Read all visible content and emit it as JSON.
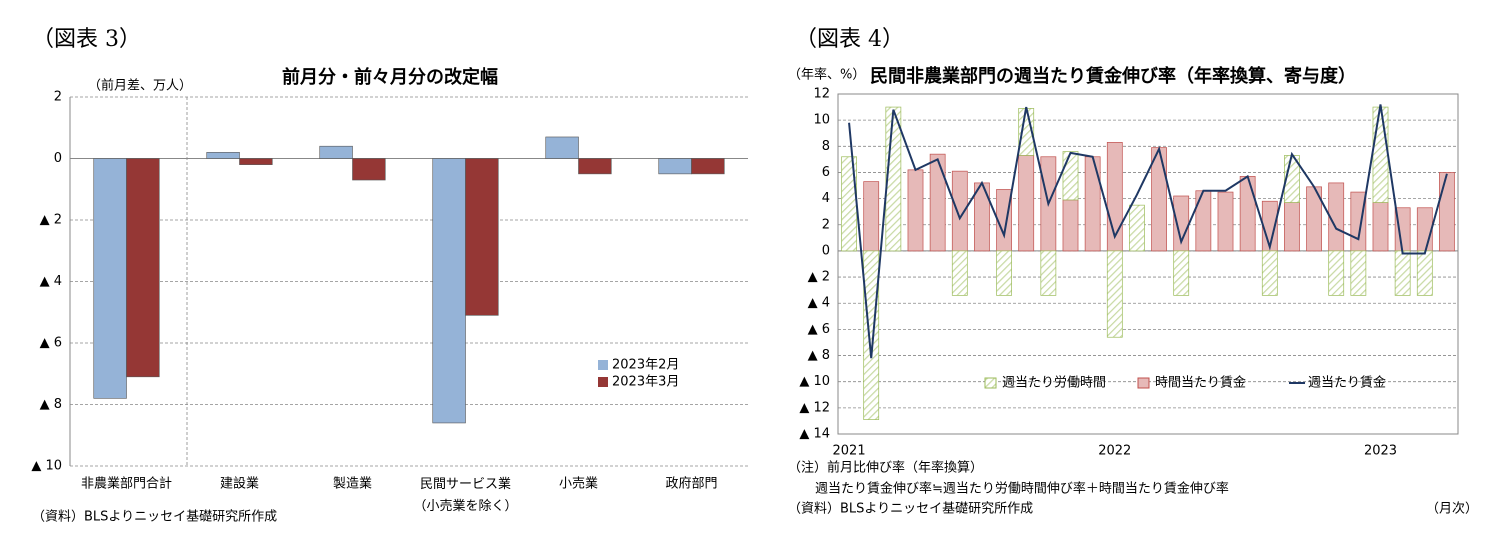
{
  "chart_data": [
    {
      "type": "bar",
      "figure_label": "（図表 3）",
      "title": "前月分・前々月分の改定幅",
      "y_label": "（前月差、万人）",
      "source": "（資料）BLSよりニッセイ基礎研究所作成",
      "categories": [
        "非農業部門合計",
        "建設業",
        "製造業",
        "民間サービス業\n（小売業を除く）",
        "小売業",
        "政府部門"
      ],
      "series": [
        {
          "name": "2023年2月",
          "color": "#95b3d7",
          "values": [
            -7.8,
            0.2,
            0.4,
            -8.6,
            0.7,
            -0.5
          ]
        },
        {
          "name": "2023年3月",
          "color": "#953735",
          "values": [
            -7.1,
            -0.2,
            -0.7,
            -5.1,
            -0.5,
            -0.5
          ]
        }
      ],
      "ylim": [
        -10,
        2
      ],
      "yticks": [
        2,
        0,
        {
          "value": -2,
          "label": "▲ 2"
        },
        {
          "value": -4,
          "label": "▲ 4"
        },
        {
          "value": -6,
          "label": "▲ 6"
        },
        {
          "value": -8,
          "label": "▲ 8"
        },
        {
          "value": -10,
          "label": "▲ 10"
        }
      ],
      "grid": true,
      "legend": "lower-right"
    },
    {
      "type": "bar_line",
      "figure_label": "（図表 4）",
      "title": "民間非農業部門の週当たり賃金伸び率（年率換算、寄与度）",
      "y_label": "（年率、%）",
      "notes": [
        "（注）前月比伸び率（年率換算）",
        "週当たり賃金伸び率≒週当たり労働時間伸び率＋時間当たり賃金伸び率",
        "（資料）BLSよりニッセイ基礎研究所作成",
        "（月次）"
      ],
      "categories": [
        "2021",
        null,
        null,
        null,
        null,
        null,
        null,
        null,
        null,
        null,
        null,
        null,
        "2022",
        null,
        null,
        null,
        null,
        null,
        null,
        null,
        null,
        null,
        null,
        null,
        "2023",
        null,
        null,
        null
      ],
      "series": [
        {
          "name": "週当たり労働時間",
          "type": "bar",
          "color": "#9bbb59",
          "values": [
            7.2,
            -12.9,
            11.0,
            0,
            0,
            -3.4,
            0,
            -3.4,
            3.6,
            -3.4,
            3.7,
            0,
            -6.6,
            3.5,
            0,
            -3.4,
            0,
            0,
            0,
            -3.4,
            3.6,
            0,
            -3.4,
            -3.4,
            7.3,
            -3.4,
            -3.4,
            0
          ]
        },
        {
          "name": "時間当たり賃金",
          "type": "bar",
          "color": "#e6b9b8",
          "values": [
            0,
            5.3,
            0,
            6.2,
            7.4,
            6.1,
            5.2,
            4.7,
            7.3,
            7.2,
            3.9,
            7.2,
            8.3,
            0,
            7.9,
            4.2,
            4.6,
            4.5,
            5.7,
            3.8,
            3.7,
            4.9,
            5.2,
            4.5,
            3.7,
            3.3,
            3.3,
            6.0
          ]
        },
        {
          "name": "週当たり賃金",
          "type": "line",
          "color": "#1f3864",
          "values": [
            9.8,
            -8.2,
            10.8,
            6.2,
            7.0,
            2.5,
            5.2,
            1.2,
            11.0,
            3.6,
            7.5,
            7.2,
            1.1,
            4.3,
            7.8,
            0.7,
            4.6,
            4.6,
            5.7,
            0.3,
            7.4,
            4.9,
            1.7,
            0.9,
            11.2,
            -0.2,
            -0.2,
            5.9
          ]
        }
      ],
      "ylim": [
        -14,
        12
      ],
      "yticks": [
        12,
        10,
        8,
        6,
        4,
        2,
        0,
        {
          "value": -2,
          "label": "▲ 2"
        },
        {
          "value": -4,
          "label": "▲ 4"
        },
        {
          "value": -6,
          "label": "▲ 6"
        },
        {
          "value": -8,
          "label": "▲ 8"
        },
        {
          "value": -10,
          "label": "▲ 10"
        },
        {
          "value": -12,
          "label": "▲ 12"
        },
        {
          "value": -14,
          "label": "▲ 14"
        }
      ],
      "grid": true,
      "legend": "bottom"
    }
  ]
}
